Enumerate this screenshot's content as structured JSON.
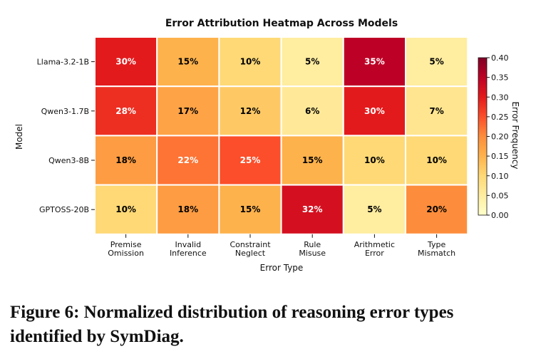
{
  "chart_data": {
    "type": "heatmap",
    "title": "Error Attribution Heatmap Across Models",
    "xlabel": "Error Type",
    "ylabel": "Model",
    "x_categories": [
      [
        "Premise",
        "Omission"
      ],
      [
        "Invalid",
        "Inference"
      ],
      [
        "Constraint",
        "Neglect"
      ],
      [
        "Rule",
        "Misuse"
      ],
      [
        "Arithmetic",
        "Error"
      ],
      [
        "Type",
        "Mismatch"
      ]
    ],
    "y_categories": [
      "Llama-3.2-1B",
      "Qwen3-1.7B",
      "Qwen3-8B",
      "GPTOSS-20B"
    ],
    "values": [
      [
        0.3,
        0.15,
        0.1,
        0.05,
        0.35,
        0.05
      ],
      [
        0.28,
        0.17,
        0.12,
        0.06,
        0.3,
        0.07
      ],
      [
        0.18,
        0.22,
        0.25,
        0.15,
        0.1,
        0.1
      ],
      [
        0.1,
        0.18,
        0.15,
        0.32,
        0.05,
        0.2
      ]
    ],
    "value_labels": [
      [
        "30%",
        "15%",
        "10%",
        "5%",
        "35%",
        "5%"
      ],
      [
        "28%",
        "17%",
        "12%",
        "6%",
        "30%",
        "7%"
      ],
      [
        "18%",
        "22%",
        "25%",
        "15%",
        "10%",
        "10%"
      ],
      [
        "10%",
        "18%",
        "15%",
        "32%",
        "5%",
        "20%"
      ]
    ],
    "colorbar": {
      "label": "Error Frequency",
      "range": [
        0.0,
        0.4
      ],
      "ticks": [
        "0.00",
        "0.05",
        "0.10",
        "0.15",
        "0.20",
        "0.25",
        "0.30",
        "0.35",
        "0.40"
      ],
      "colormap": "YlOrRd"
    }
  },
  "caption": "Figure 6: Normalized distribution of reasoning error types identified by SymDiag."
}
